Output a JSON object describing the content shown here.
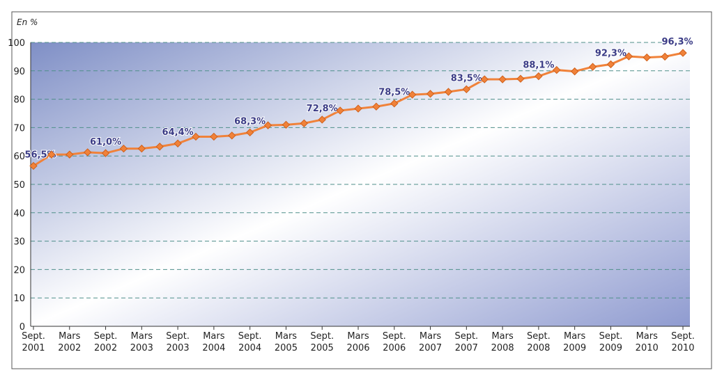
{
  "chart_data": {
    "type": "line",
    "y_label": "En %",
    "categories": [
      "Sept. 2001",
      null,
      "Mars 2002",
      null,
      "Sept. 2002",
      null,
      "Mars 2003",
      null,
      "Sept. 2003",
      null,
      "Mars 2004",
      null,
      "Sept. 2004",
      null,
      "Mars 2005",
      null,
      "Sept. 2005",
      null,
      "Mars 2006",
      null,
      "Sept. 2006",
      null,
      "Mars 2007",
      null,
      "Sept. 2007",
      null,
      "Mars 2008",
      null,
      "Sept. 2008",
      null,
      "Mars 2009",
      null,
      "Sept. 2009",
      null,
      "Mars 2010",
      null,
      "Sept. 2010"
    ],
    "series": [
      {
        "color": "#f0823a",
        "values": [
          56.5,
          60.5,
          60.5,
          61.3,
          61.0,
          62.6,
          62.6,
          63.3,
          64.4,
          66.8,
          66.8,
          67.2,
          68.3,
          70.8,
          71.0,
          71.5,
          72.8,
          76.0,
          76.7,
          77.4,
          78.5,
          81.6,
          81.9,
          82.6,
          83.5,
          87.0,
          87.0,
          87.2,
          88.1,
          90.3,
          89.8,
          91.4,
          92.3,
          95.1,
          94.7,
          95.0,
          96.3
        ],
        "value_labels": [
          "56,5%",
          null,
          null,
          null,
          "61,0%",
          null,
          null,
          null,
          "64,4%",
          null,
          null,
          null,
          "68,3%",
          null,
          null,
          null,
          "72,8%",
          null,
          null,
          null,
          "78,5%",
          null,
          null,
          null,
          "83,5%",
          null,
          null,
          null,
          "88,1%",
          null,
          null,
          null,
          "92,3%",
          null,
          null,
          null,
          "96,3%"
        ]
      }
    ],
    "ylim": [
      0,
      100
    ],
    "yticks": [
      0,
      10,
      20,
      30,
      40,
      50,
      60,
      70,
      80,
      90,
      100
    ],
    "grid": true
  }
}
